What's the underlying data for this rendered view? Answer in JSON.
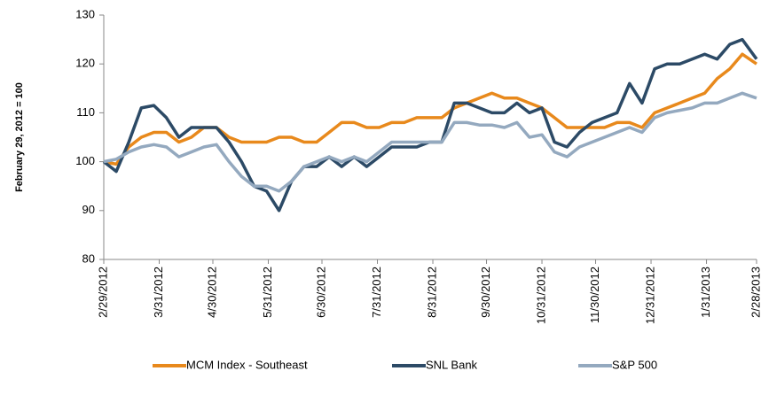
{
  "chart_data": {
    "type": "line",
    "y_label": "February 29, 2012 = 100",
    "x": [
      "2/29/2012",
      "3/7/2012",
      "3/14/2012",
      "3/21/2012",
      "3/28/2012",
      "4/4/2012",
      "4/11/2012",
      "4/18/2012",
      "4/25/2012",
      "5/2/2012",
      "5/9/2012",
      "5/16/2012",
      "5/23/2012",
      "5/30/2012",
      "6/6/2012",
      "6/13/2012",
      "6/20/2012",
      "6/27/2012",
      "7/4/2012",
      "7/11/2012",
      "7/18/2012",
      "7/25/2012",
      "8/1/2012",
      "8/8/2012",
      "8/15/2012",
      "8/22/2012",
      "8/29/2012",
      "9/5/2012",
      "9/12/2012",
      "9/19/2012",
      "9/26/2012",
      "10/3/2012",
      "10/10/2012",
      "10/17/2012",
      "10/24/2012",
      "10/31/2012",
      "11/7/2012",
      "11/14/2012",
      "11/21/2012",
      "11/28/2012",
      "12/5/2012",
      "12/12/2012",
      "12/19/2012",
      "12/26/2012",
      "1/2/2013",
      "1/9/2013",
      "1/16/2013",
      "1/23/2013",
      "1/30/2013",
      "2/6/2013",
      "2/13/2013",
      "2/20/2013",
      "2/28/2013"
    ],
    "series": [
      {
        "name": "MCM Index - Southeast",
        "color": "#e8891c",
        "values": [
          100,
          99.5,
          103,
          105,
          106,
          106,
          104,
          105,
          107,
          107,
          105,
          104,
          104,
          104,
          105,
          105,
          104,
          104,
          106,
          108,
          108,
          107,
          107,
          108,
          108,
          109,
          109,
          109,
          111,
          112,
          113,
          114,
          113,
          113,
          112,
          111,
          109,
          107,
          107,
          107,
          107,
          108,
          108,
          107,
          110,
          111,
          112,
          113,
          114,
          117,
          119,
          122,
          120
        ]
      },
      {
        "name": "SNL Bank",
        "color": "#2c4a66",
        "values": [
          100,
          98,
          104,
          111,
          111.5,
          109,
          105,
          107,
          107,
          107,
          104,
          100,
          95,
          94,
          90,
          96,
          99,
          99,
          101,
          99,
          101,
          99,
          101,
          103,
          103,
          103,
          104,
          104,
          112,
          112,
          111,
          110,
          110,
          112,
          110,
          111,
          104,
          103,
          106,
          108,
          109,
          110,
          116,
          112,
          119,
          120,
          120,
          121,
          122,
          121,
          124,
          125,
          121
        ]
      },
      {
        "name": "S&P 500",
        "color": "#94a9bf",
        "values": [
          100,
          100.5,
          102,
          103,
          103.5,
          103,
          101,
          102,
          103,
          103.5,
          100,
          97,
          95,
          95,
          94,
          96,
          99,
          100,
          101,
          100,
          101,
          100,
          102,
          104,
          104,
          104,
          104,
          104,
          108,
          108,
          107.5,
          107.5,
          107,
          108,
          105,
          105.5,
          102,
          101,
          103,
          104,
          105,
          106,
          107,
          106,
          109,
          110,
          110.5,
          111,
          112,
          112,
          113,
          114,
          113
        ]
      }
    ],
    "ylim": [
      80,
      130
    ],
    "yticks": [
      80,
      90,
      100,
      110,
      120,
      130
    ],
    "xlim": [
      "2/29/2012",
      "2/28/2013"
    ],
    "xticks": [
      "2/29/2012",
      "3/31/2012",
      "4/30/2012",
      "5/31/2012",
      "6/30/2012",
      "7/31/2012",
      "8/31/2012",
      "9/30/2012",
      "10/31/2012",
      "11/30/2012",
      "12/31/2012",
      "1/31/2013",
      "2/28/2013"
    ],
    "legend": "bottom"
  }
}
